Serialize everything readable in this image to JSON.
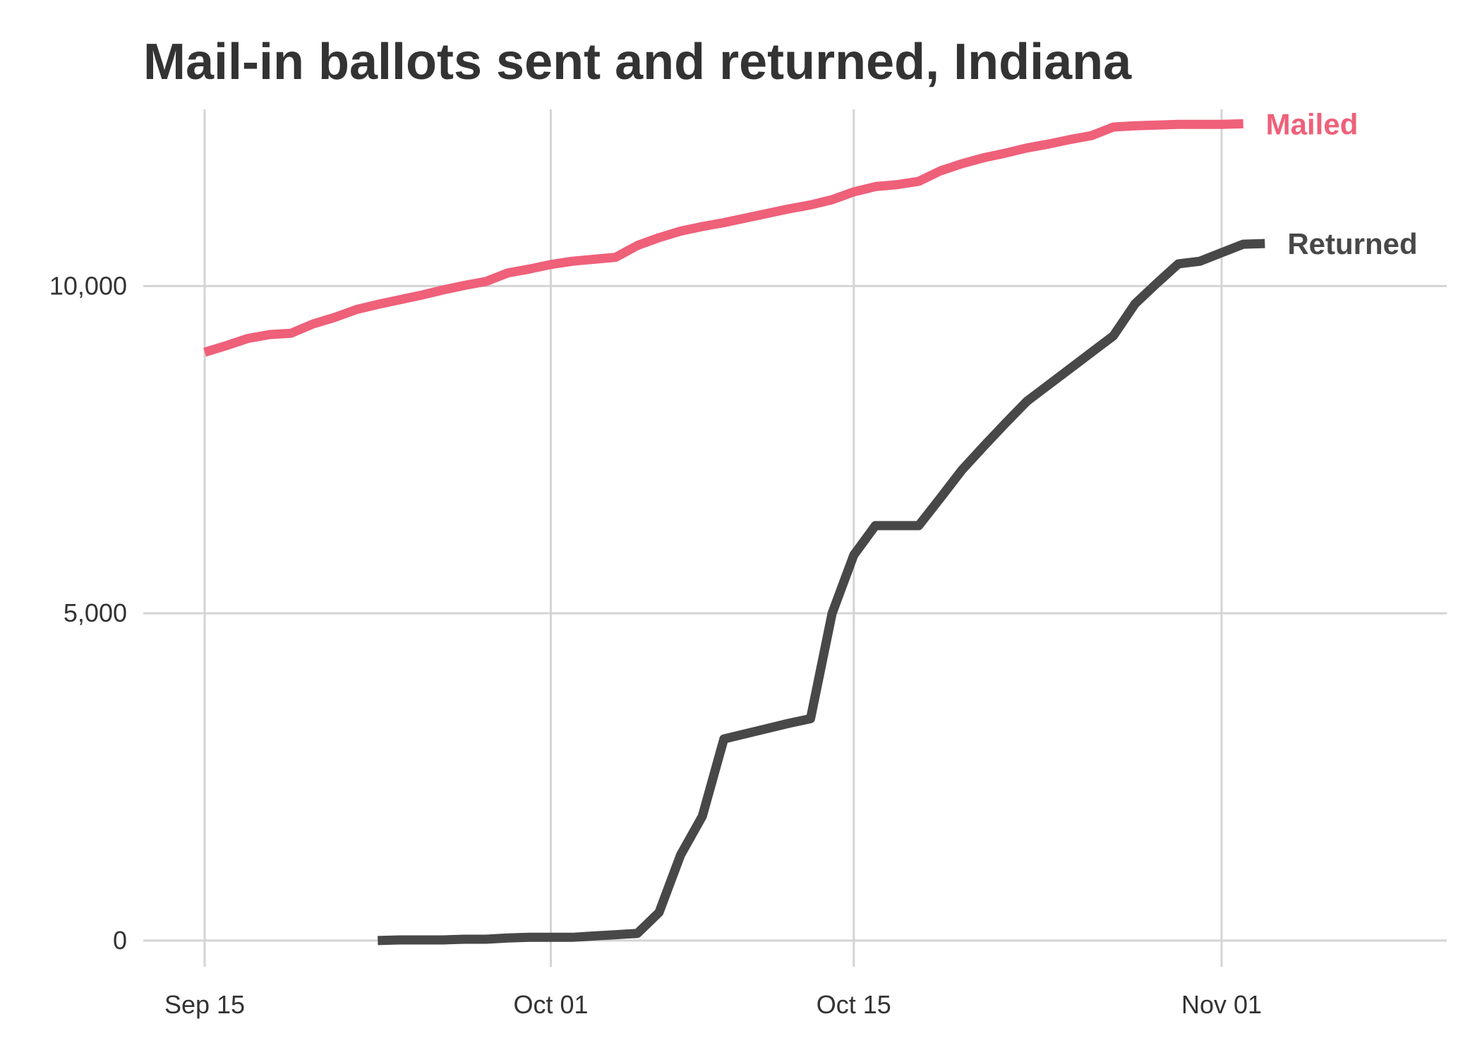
{
  "chart_data": {
    "type": "line",
    "title": "Mail-in ballots sent and returned, Indiana",
    "xlabel": "",
    "ylabel": "",
    "x_axis": {
      "type": "date",
      "range": [
        "2020-09-15",
        "2020-11-10"
      ],
      "ticks": [
        {
          "value": "2020-09-15",
          "label": "Sep 15"
        },
        {
          "value": "2020-10-01",
          "label": "Oct 01"
        },
        {
          "value": "2020-10-15",
          "label": "Oct 15"
        },
        {
          "value": "2020-11-01",
          "label": "Nov 01"
        }
      ]
    },
    "y_axis": {
      "range": [
        -400,
        12700
      ],
      "ticks": [
        {
          "value": 0,
          "label": "0"
        },
        {
          "value": 5000,
          "label": "5,000"
        },
        {
          "value": 10000,
          "label": "10,000"
        }
      ]
    },
    "grid": true,
    "legend": "direct labels at line ends",
    "series": [
      {
        "name": "Mailed",
        "color": "#ef6079",
        "points": [
          [
            "2020-09-15",
            8990
          ],
          [
            "2020-09-16",
            9090
          ],
          [
            "2020-09-17",
            9200
          ],
          [
            "2020-09-18",
            9260
          ],
          [
            "2020-09-19",
            9280
          ],
          [
            "2020-09-20",
            9420
          ],
          [
            "2020-09-21",
            9520
          ],
          [
            "2020-09-22",
            9640
          ],
          [
            "2020-09-23",
            9720
          ],
          [
            "2020-09-24",
            9790
          ],
          [
            "2020-09-25",
            9860
          ],
          [
            "2020-09-26",
            9940
          ],
          [
            "2020-09-27",
            10010
          ],
          [
            "2020-09-28",
            10070
          ],
          [
            "2020-09-29",
            10200
          ],
          [
            "2020-09-30",
            10260
          ],
          [
            "2020-10-01",
            10330
          ],
          [
            "2020-10-02",
            10380
          ],
          [
            "2020-10-03",
            10410
          ],
          [
            "2020-10-04",
            10440
          ],
          [
            "2020-10-05",
            10620
          ],
          [
            "2020-10-06",
            10740
          ],
          [
            "2020-10-07",
            10840
          ],
          [
            "2020-10-08",
            10910
          ],
          [
            "2020-10-09",
            10970
          ],
          [
            "2020-10-10",
            11040
          ],
          [
            "2020-10-11",
            11110
          ],
          [
            "2020-10-12",
            11180
          ],
          [
            "2020-10-13",
            11240
          ],
          [
            "2020-10-14",
            11320
          ],
          [
            "2020-10-15",
            11440
          ],
          [
            "2020-10-16",
            11520
          ],
          [
            "2020-10-17",
            11550
          ],
          [
            "2020-10-18",
            11600
          ],
          [
            "2020-10-19",
            11760
          ],
          [
            "2020-10-20",
            11870
          ],
          [
            "2020-10-21",
            11960
          ],
          [
            "2020-10-22",
            12030
          ],
          [
            "2020-10-23",
            12110
          ],
          [
            "2020-10-24",
            12170
          ],
          [
            "2020-10-25",
            12240
          ],
          [
            "2020-10-26",
            12300
          ],
          [
            "2020-10-27",
            12430
          ],
          [
            "2020-10-28",
            12450
          ],
          [
            "2020-10-29",
            12460
          ],
          [
            "2020-10-30",
            12470
          ],
          [
            "2020-10-31",
            12470
          ],
          [
            "2020-11-01",
            12470
          ],
          [
            "2020-11-02",
            12480
          ]
        ]
      },
      {
        "name": "Returned",
        "color": "#484848",
        "points": [
          [
            "2020-09-23",
            0
          ],
          [
            "2020-09-24",
            10
          ],
          [
            "2020-09-25",
            10
          ],
          [
            "2020-09-26",
            10
          ],
          [
            "2020-09-27",
            20
          ],
          [
            "2020-09-28",
            20
          ],
          [
            "2020-09-29",
            40
          ],
          [
            "2020-09-30",
            50
          ],
          [
            "2020-10-01",
            50
          ],
          [
            "2020-10-02",
            50
          ],
          [
            "2020-10-03",
            70
          ],
          [
            "2020-10-04",
            90
          ],
          [
            "2020-10-05",
            110
          ],
          [
            "2020-10-06",
            430
          ],
          [
            "2020-10-07",
            1310
          ],
          [
            "2020-10-08",
            1900
          ],
          [
            "2020-10-09",
            3080
          ],
          [
            "2020-10-10",
            3160
          ],
          [
            "2020-10-11",
            3240
          ],
          [
            "2020-10-12",
            3320
          ],
          [
            "2020-10-13",
            3390
          ],
          [
            "2020-10-14",
            5000
          ],
          [
            "2020-10-15",
            5890
          ],
          [
            "2020-10-16",
            6340
          ],
          [
            "2020-10-17",
            6340
          ],
          [
            "2020-10-18",
            6340
          ],
          [
            "2020-10-19",
            6760
          ],
          [
            "2020-10-20",
            7190
          ],
          [
            "2020-10-21",
            7550
          ],
          [
            "2020-10-22",
            7900
          ],
          [
            "2020-10-23",
            8240
          ],
          [
            "2020-10-24",
            8490
          ],
          [
            "2020-10-25",
            8740
          ],
          [
            "2020-10-26",
            8990
          ],
          [
            "2020-10-27",
            9240
          ],
          [
            "2020-10-28",
            9730
          ],
          [
            "2020-10-29",
            10040
          ],
          [
            "2020-10-30",
            10340
          ],
          [
            "2020-10-31",
            10380
          ],
          [
            "2020-11-01",
            10510
          ],
          [
            "2020-11-02",
            10640
          ],
          [
            "2020-11-03",
            10650
          ]
        ]
      }
    ]
  }
}
